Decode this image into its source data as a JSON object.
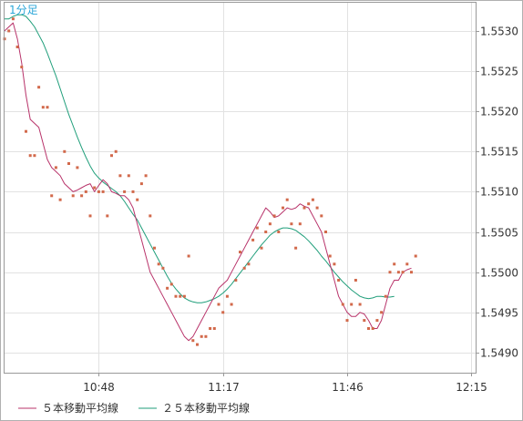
{
  "chart_data": {
    "type": "line",
    "title": "",
    "timeframe_label": "1分足",
    "xlabel": "",
    "ylabel": "",
    "x_axis": {
      "start_minutes": 626,
      "step_minutes": 1,
      "tick_labels": [
        "10:48",
        "11:17",
        "11:46",
        "12:15"
      ],
      "tick_minutes": [
        648,
        677,
        706,
        735
      ]
    },
    "y_axis": {
      "ylim": [
        1.54875,
        1.55335
      ],
      "ticks": [
        1.549,
        1.5495,
        1.55,
        1.5505,
        1.551,
        1.5515,
        1.552,
        1.5525,
        1.553
      ],
      "tick_labels": [
        "1.5490",
        "1.5495",
        "1.5500",
        "1.5505",
        "1.5510",
        "1.5515",
        "1.5520",
        "1.5525",
        "1.5530"
      ]
    },
    "grid": true,
    "legend_position": "bottom-left",
    "points_color": "#d2694b",
    "series": [
      {
        "name": "５本移動平均線",
        "color": "#b8336a",
        "values": [
          1.553,
          1.55305,
          1.5531,
          1.5529,
          1.5526,
          1.5522,
          1.5519,
          1.55185,
          1.5518,
          1.5516,
          1.5514,
          1.5513,
          1.55125,
          1.5512,
          1.5511,
          1.55105,
          1.551,
          1.55102,
          1.55105,
          1.55108,
          1.5511,
          1.551,
          1.55108,
          1.55115,
          1.5511,
          1.551,
          1.55098,
          1.55095,
          1.55095,
          1.5509,
          1.5508,
          1.5506,
          1.5504,
          1.5502,
          1.55,
          1.5499,
          1.5498,
          1.5497,
          1.5496,
          1.5495,
          1.5494,
          1.5493,
          1.5492,
          1.54915,
          1.5492,
          1.5493,
          1.5494,
          1.5495,
          1.5496,
          1.5497,
          1.5498,
          1.54985,
          1.5499,
          1.55,
          1.5501,
          1.5502,
          1.5503,
          1.5504,
          1.5505,
          1.5506,
          1.5507,
          1.5508,
          1.55075,
          1.55068,
          1.5507,
          1.55075,
          1.5508,
          1.55078,
          1.5508,
          1.55085,
          1.55082,
          1.5508,
          1.5507,
          1.5506,
          1.5505,
          1.5503,
          1.5501,
          1.5499,
          1.5497,
          1.5496,
          1.5495,
          1.54945,
          1.54945,
          1.5495,
          1.54948,
          1.5494,
          1.5493,
          1.5493,
          1.5494,
          1.5496,
          1.5498,
          1.5499,
          1.5499,
          1.55,
          1.55003,
          1.55005
        ]
      },
      {
        "name": "２５本移動平均線",
        "color": "#1f9e7a",
        "values": [
          1.55315,
          1.55315,
          1.55318,
          1.5532,
          1.5532,
          1.55318,
          1.55312,
          1.55305,
          1.55295,
          1.55285,
          1.55272,
          1.55258,
          1.55244,
          1.55228,
          1.55212,
          1.55196,
          1.55182,
          1.55168,
          1.55155,
          1.55143,
          1.55132,
          1.55123,
          1.55117,
          1.55112,
          1.55108,
          1.55104,
          1.551,
          1.55095,
          1.55088,
          1.5508,
          1.55072,
          1.55065,
          1.55055,
          1.55045,
          1.55035,
          1.55025,
          1.55015,
          1.55005,
          1.54995,
          1.54986,
          1.54979,
          1.54973,
          1.54968,
          1.54965,
          1.54963,
          1.54962,
          1.54962,
          1.54963,
          1.54965,
          1.54967,
          1.5497,
          1.54974,
          1.54979,
          1.54985,
          1.54992,
          1.54999,
          1.55006,
          1.55013,
          1.5502,
          1.55027,
          1.55034,
          1.5504,
          1.55046,
          1.5505,
          1.55053,
          1.55055,
          1.55055,
          1.55054,
          1.55052,
          1.55048,
          1.55044,
          1.55039,
          1.55033,
          1.55027,
          1.5502,
          1.55014,
          1.55007,
          1.55,
          1.54994,
          1.54988,
          1.54983,
          1.54978,
          1.54974,
          1.5497,
          1.54968,
          1.54967,
          1.54968,
          1.5497,
          1.5497,
          1.54969,
          1.54969,
          1.5497
        ]
      }
    ],
    "points": [
      {
        "x": 626,
        "y": 1.5529
      },
      {
        "x": 627,
        "y": 1.553
      },
      {
        "x": 628,
        "y": 1.55315
      },
      {
        "x": 629,
        "y": 1.5528
      },
      {
        "x": 630,
        "y": 1.55255
      },
      {
        "x": 631,
        "y": 1.55175
      },
      {
        "x": 632,
        "y": 1.55145
      },
      {
        "x": 633,
        "y": 1.55145
      },
      {
        "x": 634,
        "y": 1.5523
      },
      {
        "x": 635,
        "y": 1.55205
      },
      {
        "x": 636,
        "y": 1.55205
      },
      {
        "x": 637,
        "y": 1.55095
      },
      {
        "x": 638,
        "y": 1.5513
      },
      {
        "x": 639,
        "y": 1.5509
      },
      {
        "x": 640,
        "y": 1.5515
      },
      {
        "x": 641,
        "y": 1.55135
      },
      {
        "x": 642,
        "y": 1.55095
      },
      {
        "x": 643,
        "y": 1.5513
      },
      {
        "x": 644,
        "y": 1.55095
      },
      {
        "x": 645,
        "y": 1.551
      },
      {
        "x": 646,
        "y": 1.5507
      },
      {
        "x": 647,
        "y": 1.55105
      },
      {
        "x": 648,
        "y": 1.551
      },
      {
        "x": 649,
        "y": 1.551
      },
      {
        "x": 650,
        "y": 1.5507
      },
      {
        "x": 651,
        "y": 1.55145
      },
      {
        "x": 652,
        "y": 1.5515
      },
      {
        "x": 653,
        "y": 1.5512
      },
      {
        "x": 654,
        "y": 1.551
      },
      {
        "x": 655,
        "y": 1.5512
      },
      {
        "x": 656,
        "y": 1.551
      },
      {
        "x": 657,
        "y": 1.5509
      },
      {
        "x": 658,
        "y": 1.5511
      },
      {
        "x": 659,
        "y": 1.5512
      },
      {
        "x": 660,
        "y": 1.5507
      },
      {
        "x": 661,
        "y": 1.5503
      },
      {
        "x": 662,
        "y": 1.5501
      },
      {
        "x": 663,
        "y": 1.55005
      },
      {
        "x": 664,
        "y": 1.5498
      },
      {
        "x": 665,
        "y": 1.54985
      },
      {
        "x": 666,
        "y": 1.5497
      },
      {
        "x": 667,
        "y": 1.5497
      },
      {
        "x": 668,
        "y": 1.5497
      },
      {
        "x": 669,
        "y": 1.5502
      },
      {
        "x": 670,
        "y": 1.54915
      },
      {
        "x": 671,
        "y": 1.5491
      },
      {
        "x": 672,
        "y": 1.5492
      },
      {
        "x": 673,
        "y": 1.5492
      },
      {
        "x": 674,
        "y": 1.5493
      },
      {
        "x": 675,
        "y": 1.5493
      },
      {
        "x": 676,
        "y": 1.5496
      },
      {
        "x": 677,
        "y": 1.5495
      },
      {
        "x": 678,
        "y": 1.5497
      },
      {
        "x": 679,
        "y": 1.5496
      },
      {
        "x": 680,
        "y": 1.5499
      },
      {
        "x": 681,
        "y": 1.55025
      },
      {
        "x": 682,
        "y": 1.55005
      },
      {
        "x": 683,
        "y": 1.5501
      },
      {
        "x": 684,
        "y": 1.5504
      },
      {
        "x": 685,
        "y": 1.55055
      },
      {
        "x": 686,
        "y": 1.5503
      },
      {
        "x": 687,
        "y": 1.5505
      },
      {
        "x": 688,
        "y": 1.5506
      },
      {
        "x": 689,
        "y": 1.5507
      },
      {
        "x": 690,
        "y": 1.5505
      },
      {
        "x": 691,
        "y": 1.5508
      },
      {
        "x": 692,
        "y": 1.5509
      },
      {
        "x": 693,
        "y": 1.5506
      },
      {
        "x": 694,
        "y": 1.5503
      },
      {
        "x": 695,
        "y": 1.5506
      },
      {
        "x": 696,
        "y": 1.5508
      },
      {
        "x": 697,
        "y": 1.55085
      },
      {
        "x": 698,
        "y": 1.5509
      },
      {
        "x": 699,
        "y": 1.5508
      },
      {
        "x": 700,
        "y": 1.5507
      },
      {
        "x": 701,
        "y": 1.5505
      },
      {
        "x": 702,
        "y": 1.5502
      },
      {
        "x": 703,
        "y": 1.5501
      },
      {
        "x": 704,
        "y": 1.5499
      },
      {
        "x": 705,
        "y": 1.5496
      },
      {
        "x": 706,
        "y": 1.5494
      },
      {
        "x": 707,
        "y": 1.5496
      },
      {
        "x": 708,
        "y": 1.5499
      },
      {
        "x": 709,
        "y": 1.5496
      },
      {
        "x": 710,
        "y": 1.5494
      },
      {
        "x": 711,
        "y": 1.5493
      },
      {
        "x": 712,
        "y": 1.5493
      },
      {
        "x": 713,
        "y": 1.5494
      },
      {
        "x": 714,
        "y": 1.5495
      },
      {
        "x": 715,
        "y": 1.5497
      },
      {
        "x": 716,
        "y": 1.55
      },
      {
        "x": 717,
        "y": 1.5501
      },
      {
        "x": 718,
        "y": 1.55
      },
      {
        "x": 719,
        "y": 1.55
      },
      {
        "x": 720,
        "y": 1.5501
      },
      {
        "x": 721,
        "y": 1.55
      },
      {
        "x": 722,
        "y": 1.5502
      }
    ]
  }
}
